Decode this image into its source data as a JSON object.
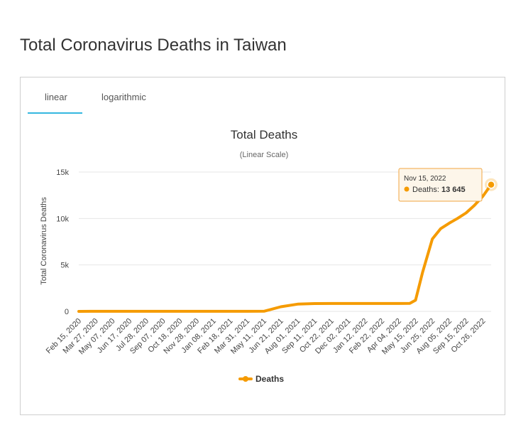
{
  "page": {
    "title": "Total Coronavirus Deaths in Taiwan"
  },
  "tabs": [
    {
      "label": "linear"
    },
    {
      "label": "logarithmic"
    }
  ],
  "tooltip": {
    "date": "Nov 15, 2022",
    "series": "Deaths",
    "value": "13 645"
  },
  "colors": {
    "series": "#f59b00",
    "tab_active": "#35b7e0",
    "grid": "#e6e6e6"
  },
  "chart_data": {
    "type": "line",
    "title": "Total Deaths",
    "subtitle": "(Linear Scale)",
    "ylabel": "Total Coronavirus Deaths",
    "xlabel": "",
    "ylim": [
      0,
      15000
    ],
    "yticks": [
      0,
      5000,
      10000,
      15000
    ],
    "ytick_labels": [
      "0",
      "5k",
      "10k",
      "15k"
    ],
    "x_tick_labels": [
      "Feb 15, 2020",
      "Mar 27, 2020",
      "May 07, 2020",
      "Jun 17, 2020",
      "Jul 28, 2020",
      "Sep 07, 2020",
      "Oct 18, 2020",
      "Nov 28, 2020",
      "Jan 08, 2021",
      "Feb 18, 2021",
      "Mar 31, 2021",
      "May 11, 2021",
      "Jun 21, 2021",
      "Aug 01, 2021",
      "Sep 11, 2021",
      "Oct 22, 2021",
      "Dec 02, 2021",
      "Jan 12, 2022",
      "Feb 22, 2022",
      "Apr 04, 2022",
      "May 15, 2022",
      "Jun 25, 2022",
      "Aug 05, 2022",
      "Sep 15, 2022",
      "Oct 26, 2022"
    ],
    "legend": "bottom-center",
    "grid": true,
    "series": [
      {
        "name": "Deaths",
        "x": [
          "Feb 15, 2020",
          "Mar 27, 2020",
          "May 07, 2020",
          "Jun 17, 2020",
          "Jul 28, 2020",
          "Sep 07, 2020",
          "Oct 18, 2020",
          "Nov 28, 2020",
          "Jan 08, 2021",
          "Feb 18, 2021",
          "Mar 31, 2021",
          "May 11, 2021",
          "Jun 21, 2021",
          "Aug 01, 2021",
          "Sep 11, 2021",
          "Oct 22, 2021",
          "Dec 02, 2021",
          "Jan 12, 2022",
          "Feb 22, 2022",
          "Apr 04, 2022",
          "May 01, 2022",
          "May 15, 2022",
          "Jun 01, 2022",
          "Jun 25, 2022",
          "Jul 15, 2022",
          "Aug 05, 2022",
          "Aug 25, 2022",
          "Sep 15, 2022",
          "Oct 05, 2022",
          "Oct 26, 2022",
          "Nov 15, 2022"
        ],
        "values": [
          1,
          7,
          7,
          7,
          7,
          7,
          7,
          7,
          8,
          9,
          10,
          12,
          500,
          780,
          840,
          847,
          850,
          851,
          852,
          853,
          860,
          1200,
          4200,
          7800,
          8900,
          9500,
          10000,
          10600,
          11400,
          12400,
          13645
        ]
      }
    ]
  }
}
